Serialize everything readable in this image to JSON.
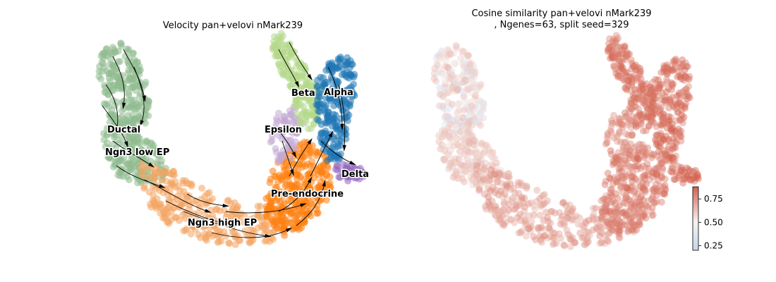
{
  "chart_data": [
    {
      "type": "scatter",
      "title": "Velocity pan+velovi nMark239",
      "xlabel": "",
      "ylabel": "",
      "axes_visible": false,
      "streamlines": true,
      "clusters": [
        {
          "name": "Ductal",
          "color": "#8fbc8f",
          "label_position": "left arm middle"
        },
        {
          "name": "Ngn3 low EP",
          "color": "#8fbc8f",
          "label_position": "left arm lower"
        },
        {
          "name": "Ngn3 high EP",
          "color": "#f4a460",
          "label_position": "bottom"
        },
        {
          "name": "Pre-endocrine",
          "color": "#ff7f0e",
          "label_position": "right lower"
        },
        {
          "name": "Epsilon",
          "color": "#c3a9d4",
          "label_position": "right middle"
        },
        {
          "name": "Beta",
          "color": "#b5d88a",
          "label_position": "right upper"
        },
        {
          "name": "Alpha",
          "color": "#1f77b4",
          "label_position": "right top"
        },
        {
          "name": "Delta",
          "color": "#9467bd",
          "label_position": "far right"
        }
      ]
    },
    {
      "type": "scatter",
      "title_line1": "Cosine similarity pan+velovi nMark239",
      "title_line2": ", Ngenes=63, split seed=329",
      "xlabel": "",
      "ylabel": "",
      "axes_visible": false,
      "colormap": "coolwarm",
      "colorbar": {
        "min": 0.2,
        "max": 0.88,
        "ticks": [
          0.25,
          0.5,
          0.75
        ],
        "tick_labels": [
          "0.25",
          "0.50",
          "0.75"
        ],
        "low_color": "#c8d6ee",
        "mid_color": "#f6f2f0",
        "high_color": "#d3614e"
      }
    }
  ]
}
